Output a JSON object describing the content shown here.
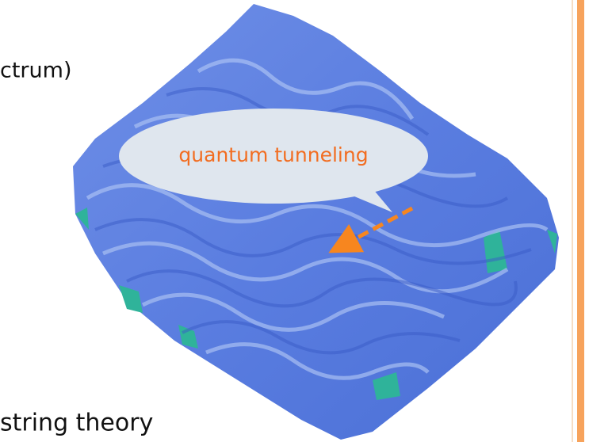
{
  "texts": {
    "top_fragment": "ctrum)",
    "bubble": "quantum tunneling",
    "bottom_fragment": "string theory"
  }
}
